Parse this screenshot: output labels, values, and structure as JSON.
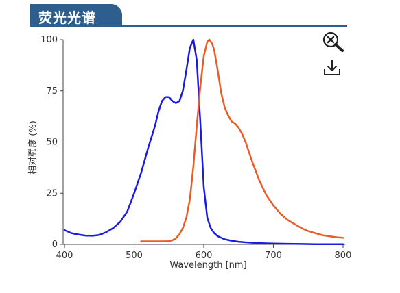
{
  "panel": {
    "title": "荧光光谱"
  },
  "toolbar": {
    "zoom_icon": "zoom-reset-icon",
    "download_icon": "download-icon"
  },
  "chart_data": {
    "type": "line",
    "xlabel": "Wavelength [nm]",
    "ylabel": "相对强度 (%)",
    "xlim": [
      398,
      803
    ],
    "ylim": [
      0,
      100
    ],
    "xticks": [
      400,
      500,
      600,
      700,
      800
    ],
    "yticks": [
      0,
      25,
      50,
      75,
      100
    ],
    "grid": false,
    "series": [
      {
        "color": "#1a1ae6",
        "x": [
          400,
          410,
          420,
          430,
          440,
          450,
          460,
          470,
          480,
          490,
          500,
          510,
          520,
          530,
          535,
          540,
          545,
          550,
          555,
          560,
          565,
          570,
          575,
          580,
          585,
          590,
          595,
          600,
          605,
          610,
          615,
          620,
          630,
          640,
          650,
          660,
          670,
          680,
          690,
          700,
          720,
          740,
          760,
          780,
          800
        ],
        "y": [
          7,
          5.5,
          4.8,
          4.3,
          4.2,
          4.6,
          6,
          8,
          11,
          16,
          25,
          35,
          47,
          58,
          65,
          70,
          72,
          72,
          70,
          69,
          70,
          75,
          85,
          96,
          100,
          90,
          60,
          28,
          13,
          8,
          5.5,
          4,
          2.5,
          1.8,
          1.3,
          1,
          0.8,
          0.6,
          0.5,
          0.4,
          0.3,
          0.2,
          0.1,
          0.1,
          0.1
        ]
      },
      {
        "color": "#ee5a24",
        "x": [
          510,
          520,
          530,
          540,
          550,
          555,
          560,
          565,
          570,
          575,
          580,
          585,
          590,
          595,
          600,
          605,
          608,
          612,
          615,
          620,
          625,
          630,
          635,
          640,
          645,
          650,
          655,
          660,
          670,
          680,
          690,
          700,
          710,
          720,
          730,
          740,
          750,
          760,
          770,
          780,
          790,
          800
        ],
        "y": [
          1.5,
          1.5,
          1.5,
          1.5,
          1.6,
          2,
          3,
          5,
          8,
          13,
          22,
          38,
          58,
          77,
          92,
          99,
          100,
          98,
          95,
          85,
          74,
          67,
          63,
          60,
          59,
          57,
          54,
          50,
          40,
          31,
          24,
          19,
          15,
          12,
          10,
          8,
          6.5,
          5.5,
          4.5,
          4,
          3.5,
          3.2
        ]
      }
    ]
  }
}
